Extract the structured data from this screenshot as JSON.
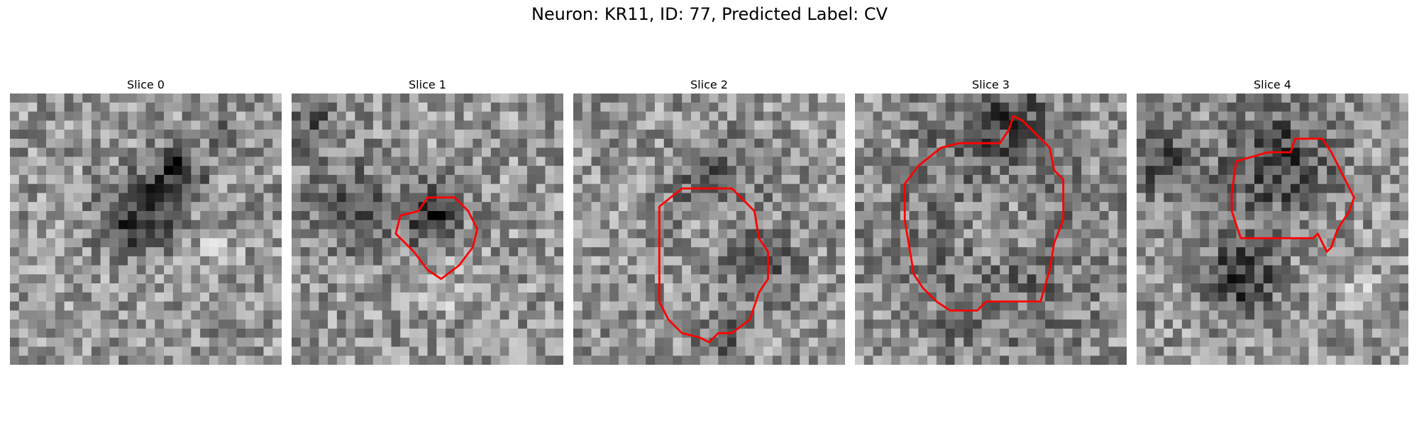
{
  "figure": {
    "title": "Neuron: KR11, ID: 77, Predicted Label: CV"
  },
  "panels": [
    {
      "title": "Slice 0",
      "image": {
        "seed": 11,
        "dark_spots": [
          [
            18,
            8,
            3.0,
            0.9
          ],
          [
            14,
            13,
            4.0,
            1.0
          ],
          [
            23,
            4,
            2.0,
            0.4
          ]
        ],
        "bright_spots": [
          [
            22,
            17,
            3.0,
            0.3
          ]
        ]
      },
      "contour": []
    },
    {
      "title": "Slice 1",
      "image": {
        "seed": 23,
        "dark_spots": [
          [
            15,
            13,
            3.0,
            1.0
          ],
          [
            6,
            12,
            5.0,
            0.5
          ],
          [
            2,
            3,
            3.0,
            0.5
          ]
        ],
        "bright_spots": [
          [
            17,
            21,
            3.0,
            0.3
          ]
        ]
      },
      "contour": [
        [
          14.0,
          13.0
        ],
        [
          15.0,
          11.5
        ],
        [
          18.0,
          11.5
        ],
        [
          19.5,
          13.0
        ],
        [
          20.5,
          15.0
        ],
        [
          20.0,
          17.0
        ],
        [
          18.5,
          19.0
        ],
        [
          16.5,
          20.5
        ],
        [
          15.0,
          19.5
        ],
        [
          13.5,
          17.5
        ],
        [
          11.5,
          15.5
        ],
        [
          12.0,
          13.5
        ]
      ]
    },
    {
      "title": "Slice 2",
      "image": {
        "seed": 37,
        "dark_spots": [
          [
            15,
            10,
            5.0,
            0.5
          ],
          [
            20,
            19,
            4.0,
            0.6
          ],
          [
            16,
            27,
            2.5,
            0.6
          ]
        ],
        "bright_spots": [
          [
            15,
            14,
            3.0,
            0.4
          ]
        ]
      },
      "contour": [
        [
          9.5,
          12.5
        ],
        [
          12.0,
          10.5
        ],
        [
          17.5,
          10.5
        ],
        [
          20.0,
          13.0
        ],
        [
          20.5,
          16.0
        ],
        [
          21.5,
          17.5
        ],
        [
          21.5,
          20.5
        ],
        [
          20.5,
          22.0
        ],
        [
          19.5,
          25.0
        ],
        [
          17.5,
          26.5
        ],
        [
          16.0,
          26.5
        ],
        [
          15.0,
          27.5
        ],
        [
          14.0,
          27.0
        ],
        [
          12.0,
          26.5
        ],
        [
          10.5,
          25.0
        ],
        [
          9.5,
          23.0
        ],
        [
          9.5,
          17.0
        ]
      ]
    },
    {
      "title": "Slice 3",
      "image": {
        "seed": 41,
        "dark_spots": [
          [
            15,
            2,
            6.0,
            0.6
          ],
          [
            15,
            16,
            11.0,
            0.6
          ]
        ],
        "bright_spots": [
          [
            15,
            14,
            6.0,
            0.7
          ]
        ]
      },
      "contour": [
        [
          7.0,
          8.0
        ],
        [
          9.5,
          6.0
        ],
        [
          11.5,
          5.5
        ],
        [
          16.0,
          5.5
        ],
        [
          17.0,
          4.0
        ],
        [
          17.5,
          2.5
        ],
        [
          18.5,
          3.0
        ],
        [
          20.0,
          4.5
        ],
        [
          21.5,
          6.0
        ],
        [
          22.0,
          8.5
        ],
        [
          23.0,
          9.5
        ],
        [
          23.0,
          14.0
        ],
        [
          22.0,
          16.5
        ],
        [
          21.5,
          19.5
        ],
        [
          20.5,
          23.0
        ],
        [
          14.5,
          23.0
        ],
        [
          13.5,
          24.0
        ],
        [
          10.5,
          24.0
        ],
        [
          9.0,
          23.0
        ],
        [
          7.5,
          21.5
        ],
        [
          6.5,
          20.0
        ],
        [
          6.0,
          17.0
        ],
        [
          5.5,
          14.0
        ],
        [
          5.5,
          10.0
        ]
      ]
    },
    {
      "title": "Slice 4",
      "image": {
        "seed": 53,
        "dark_spots": [
          [
            15,
            7,
            6.0,
            0.8
          ],
          [
            11,
            20,
            4.0,
            0.9
          ],
          [
            2,
            7,
            4.0,
            0.6
          ]
        ],
        "bright_spots": [
          [
            24,
            21,
            3.0,
            0.3
          ]
        ]
      },
      "contour": [
        [
          11.0,
          7.5
        ],
        [
          14.5,
          6.5
        ],
        [
          17.0,
          6.5
        ],
        [
          17.5,
          5.0
        ],
        [
          20.5,
          5.0
        ],
        [
          21.5,
          6.5
        ],
        [
          23.5,
          10.5
        ],
        [
          24.0,
          11.5
        ],
        [
          23.5,
          13.0
        ],
        [
          22.5,
          14.5
        ],
        [
          22.0,
          15.5
        ],
        [
          21.5,
          17.0
        ],
        [
          21.0,
          17.5
        ],
        [
          20.5,
          16.5
        ],
        [
          20.0,
          15.5
        ],
        [
          19.5,
          16.0
        ],
        [
          11.5,
          16.0
        ],
        [
          10.5,
          13.0
        ],
        [
          10.5,
          11.0
        ]
      ]
    }
  ],
  "colors": {
    "contour": "#ff0000"
  }
}
